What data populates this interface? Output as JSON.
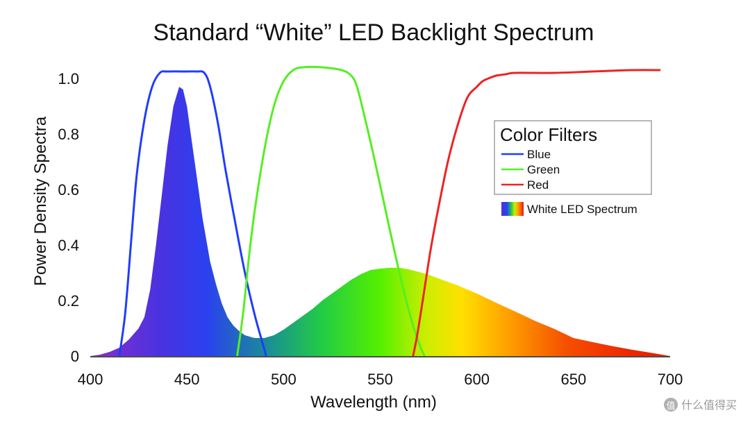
{
  "chart_data": {
    "type": "line",
    "title": "Standard “White” LED Backlight Spectrum",
    "xlabel": "Wavelength (nm)",
    "ylabel": "Power Density Spectra",
    "xlim": [
      400,
      700
    ],
    "ylim": [
      0,
      1.05
    ],
    "x_ticks": [
      400,
      450,
      500,
      550,
      600,
      650,
      700
    ],
    "x_tick_labels": [
      "400",
      "450",
      "500",
      "550",
      "600",
      "650",
      "700"
    ],
    "y_ticks": [
      0,
      0.2,
      0.4,
      0.6,
      0.8,
      1.0
    ],
    "y_tick_labels": [
      "0",
      "0.2",
      "0.4",
      "0.6",
      "0.8",
      "1.0"
    ],
    "legend": {
      "title": "Color Filters",
      "position": "right",
      "spectrum_label": "White LED Spectrum"
    },
    "series": [
      {
        "name": "Blue",
        "color": "#1f3cff",
        "x": [
          415,
          418,
          421,
          424,
          428,
          432,
          436,
          440,
          450,
          455,
          459,
          462,
          466,
          470,
          475,
          480,
          485,
          489,
          491
        ],
        "y": [
          0.0,
          0.15,
          0.4,
          0.65,
          0.85,
          0.97,
          1.02,
          1.025,
          1.025,
          1.025,
          1.02,
          0.97,
          0.84,
          0.67,
          0.48,
          0.3,
          0.15,
          0.05,
          0.0
        ]
      },
      {
        "name": "Green",
        "color": "#55ee22",
        "x": [
          476,
          479,
          482,
          485,
          490,
          495,
          500,
          505,
          510,
          520,
          530,
          535,
          538,
          542,
          547,
          552,
          557,
          562,
          567,
          571,
          573
        ],
        "y": [
          0.0,
          0.15,
          0.35,
          0.52,
          0.74,
          0.9,
          0.99,
          1.03,
          1.04,
          1.04,
          1.03,
          1.01,
          0.97,
          0.86,
          0.71,
          0.55,
          0.39,
          0.24,
          0.11,
          0.03,
          0.0
        ]
      },
      {
        "name": "Red",
        "color": "#ee2222",
        "x": [
          567,
          569,
          572,
          576,
          580,
          585,
          590,
          595,
          600,
          603,
          606,
          610,
          615,
          620,
          640,
          660,
          680,
          695
        ],
        "y": [
          0.0,
          0.07,
          0.2,
          0.38,
          0.53,
          0.7,
          0.83,
          0.93,
          0.97,
          0.99,
          1.0,
          1.01,
          1.015,
          1.02,
          1.02,
          1.025,
          1.03,
          1.03
        ]
      }
    ],
    "spectrum": {
      "name": "White LED Spectrum",
      "x": [
        400,
        405,
        410,
        415,
        420,
        425,
        428,
        431,
        434,
        437,
        440,
        443,
        446,
        448,
        450,
        452,
        454,
        456,
        458,
        460,
        462,
        465,
        468,
        471,
        474,
        477,
        480,
        485,
        490,
        495,
        500,
        505,
        510,
        515,
        520,
        525,
        530,
        535,
        540,
        545,
        550,
        555,
        560,
        565,
        570,
        575,
        580,
        590,
        600,
        610,
        620,
        630,
        640,
        650,
        660,
        670,
        680,
        690,
        700
      ],
      "y": [
        0.0,
        0.005,
        0.015,
        0.03,
        0.06,
        0.1,
        0.14,
        0.24,
        0.4,
        0.58,
        0.76,
        0.9,
        0.97,
        0.96,
        0.9,
        0.8,
        0.7,
        0.6,
        0.5,
        0.42,
        0.34,
        0.26,
        0.19,
        0.14,
        0.11,
        0.09,
        0.075,
        0.065,
        0.065,
        0.075,
        0.095,
        0.12,
        0.145,
        0.17,
        0.2,
        0.225,
        0.25,
        0.275,
        0.295,
        0.31,
        0.315,
        0.318,
        0.318,
        0.312,
        0.303,
        0.293,
        0.28,
        0.255,
        0.225,
        0.192,
        0.16,
        0.127,
        0.098,
        0.065,
        0.05,
        0.036,
        0.023,
        0.012,
        0.0
      ]
    }
  },
  "watermark": {
    "text": "值 什么值得买",
    "badge": "值",
    "label": "什么值得买"
  }
}
